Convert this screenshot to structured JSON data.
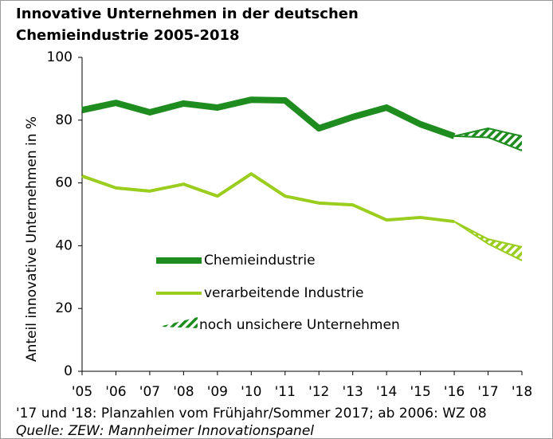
{
  "chart_data": {
    "type": "line",
    "title": [
      "Innovative Unternehmen in der deutschen",
      "Chemieindustrie 2005-2018"
    ],
    "y_label": "Anteil innovative Unternehmen in %",
    "categories": [
      "'05",
      "'06",
      "'07",
      "'08",
      "'09",
      "'10",
      "'11",
      "'12",
      "'13",
      "'14",
      "'15",
      "'16",
      "'17",
      "'18"
    ],
    "series": [
      {
        "name": "Chemieindustrie",
        "color": "#1e8c1e",
        "values": [
          83.2,
          85.5,
          82.5,
          85.3,
          84,
          86.5,
          86.3,
          77.4,
          81,
          84,
          78.7,
          74.9,
          74.5,
          70.3
        ],
        "upper": [
          null,
          null,
          null,
          null,
          null,
          null,
          null,
          null,
          null,
          null,
          null,
          74.9,
          77.4,
          74.9
        ]
      },
      {
        "name": "verarbeitende Industrie",
        "color": "#9acd1e",
        "values": [
          62.2,
          58.4,
          57.4,
          59.6,
          55.8,
          62.9,
          55.8,
          53.6,
          53,
          48.2,
          49,
          47.7,
          40.6,
          35.3
        ],
        "upper": [
          null,
          null,
          null,
          null,
          null,
          null,
          null,
          null,
          null,
          null,
          null,
          47.7,
          42.1,
          39.6
        ]
      }
    ],
    "band_label": "noch unsichere Unternehmen",
    "ylim": [
      0,
      100
    ],
    "yticks": [
      0,
      20,
      40,
      60,
      80,
      100
    ],
    "notes": [
      "'17 und '18: Planzahlen vom Frühjahr/Sommer 2017; ab 2006: WZ 08",
      "Quelle: ZEW: Mannheimer Innovationspanel"
    ]
  }
}
